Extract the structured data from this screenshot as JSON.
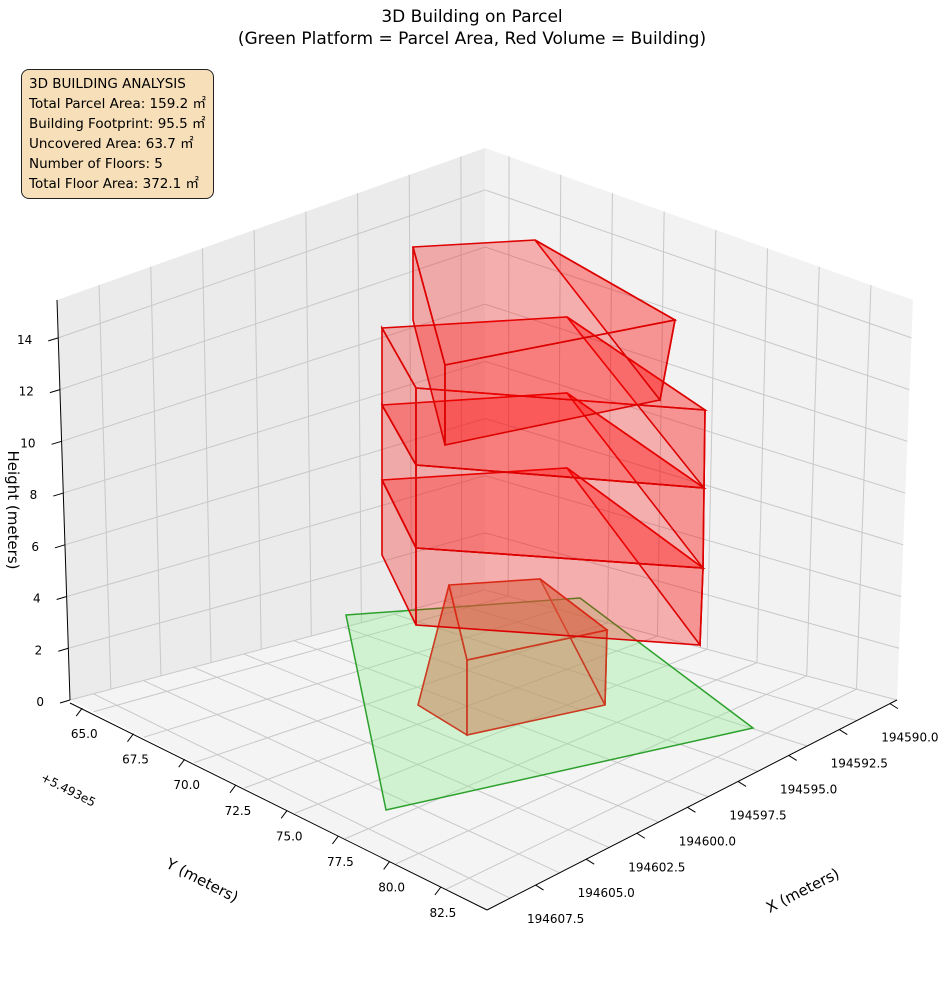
{
  "chart_data": {
    "type": "3d-polygon",
    "title": "3D Building on Parcel",
    "subtitle": "(Green Platform = Parcel Area, Red Volume = Building)",
    "xlabel": "X (meters)",
    "ylabel": "Y (meters)",
    "zlabel": "Height (meters)",
    "x_ticks": [
      "194590.0",
      "194592.5",
      "194595.0",
      "194597.5",
      "194600.0",
      "194602.5",
      "194605.0",
      "194607.5"
    ],
    "y_ticks": [
      "65.0",
      "67.5",
      "70.0",
      "72.5",
      "75.0",
      "77.5",
      "80.0",
      "82.5"
    ],
    "y_offset": "+5.493e5",
    "z_ticks": [
      "0",
      "2",
      "4",
      "6",
      "8",
      "10",
      "12",
      "14"
    ],
    "zlim": [
      0,
      15
    ],
    "colors": {
      "parcel": "#90ee90",
      "parcel_edge": "#2ca02c",
      "building": "#ff0000",
      "building_edge": "#dd0000"
    },
    "annotation": {
      "heading": "3D BUILDING ANALYSIS",
      "lines": [
        "Total Parcel Area: 159.2 ㎡",
        "Building Footprint: 95.5 ㎡",
        "Uncovered Area: 63.7 ㎡",
        "Number of Floors: 5",
        "Total Floor Area: 372.1 ㎡"
      ]
    },
    "stats": {
      "parcel_area": 159.2,
      "footprint": 95.5,
      "uncovered": 63.7,
      "floors": 5,
      "total_floor_area": 372.1
    }
  }
}
